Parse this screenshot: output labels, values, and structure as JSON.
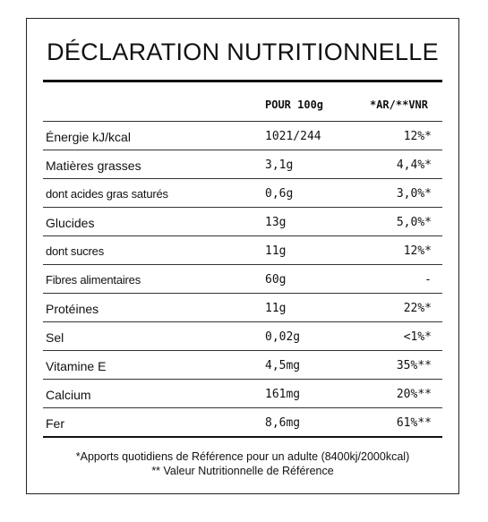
{
  "title": "DÉCLARATION NUTRITIONNELLE",
  "header": {
    "col_value": "POUR 100g",
    "col_ar": "*AR/**VNR"
  },
  "rows": [
    {
      "name": "Énergie kJ/kcal",
      "value": "1021/244",
      "ar": "12%*"
    },
    {
      "name": "Matières grasses",
      "value": "3,1g",
      "ar": "4,4%*"
    },
    {
      "name": "dont acides gras saturés",
      "value": "0,6g",
      "ar": "3,0%*"
    },
    {
      "name": "Glucides",
      "value": "13g",
      "ar": "5,0%*"
    },
    {
      "name": "dont sucres",
      "value": "11g",
      "ar": "12%*"
    },
    {
      "name": "Fibres alimentaires",
      "value": "60g",
      "ar": "-"
    },
    {
      "name": "Protéines",
      "value": "11g",
      "ar": "22%*"
    },
    {
      "name": "Sel",
      "value": "0,02g",
      "ar": "<1%*"
    },
    {
      "name": "Vitamine E",
      "value": "4,5mg",
      "ar": "35%**"
    },
    {
      "name": "Calcium",
      "value": "161mg",
      "ar": "20%**"
    },
    {
      "name": "Fer",
      "value": "8,6mg",
      "ar": "61%**"
    }
  ],
  "footnotes": {
    "line1": "*Apports quotidiens de Référence pour un adulte (8400kj/2000kcal)",
    "line2": "** Valeur Nutritionnelle de Référence"
  }
}
